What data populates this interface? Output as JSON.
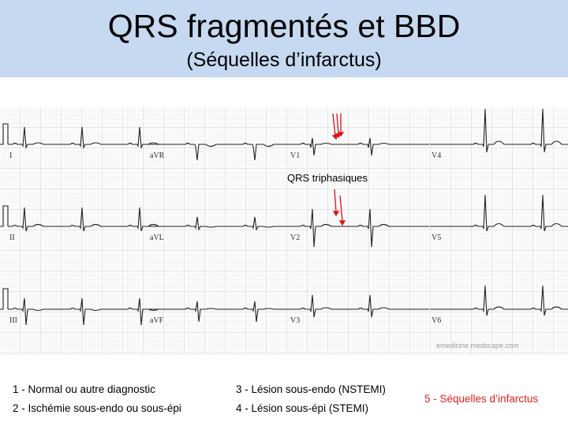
{
  "header": {
    "title": "QRS fragmentés et BBD",
    "subtitle": "(Séquelles d’infarctus)"
  },
  "ecg": {
    "leads": [
      "I",
      "aVR",
      "V1",
      "V4",
      "II",
      "aVL",
      "V2",
      "V5",
      "III",
      "aVF",
      "V3",
      "V6"
    ],
    "annotation": "QRS triphasiques",
    "watermark": "emedicine.medscape.com"
  },
  "legend": {
    "items": [
      "1 - Normal ou autre diagnostic",
      "2 - Ischémie sous-endo ou sous-épi",
      "3 - Lésion sous-endo (NSTEMI)",
      "4 - Lésion sous-épi (STEMI)",
      "5 - Séquelles d’infarctus"
    ]
  }
}
